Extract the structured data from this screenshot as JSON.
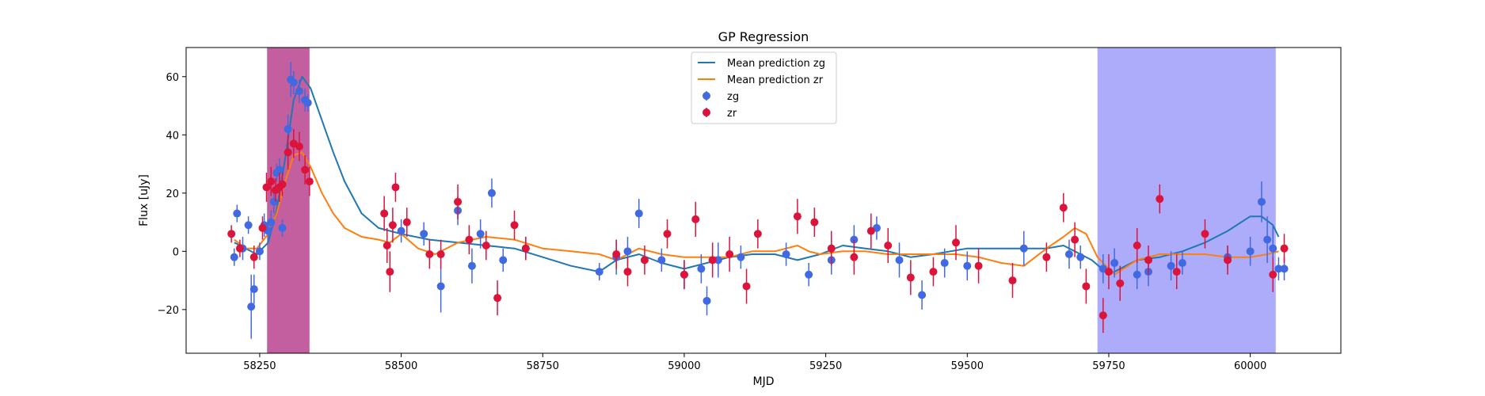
{
  "chart_data": {
    "type": "scatter",
    "title": "GP Regression",
    "xlabel": "MJD",
    "ylabel": "Flux [uJy]",
    "xlim": [
      58120,
      60160
    ],
    "ylim": [
      -35,
      70
    ],
    "x_ticks": [
      58250,
      58500,
      58750,
      59000,
      59250,
      59500,
      59750,
      60000
    ],
    "y_ticks": [
      -20,
      0,
      20,
      40,
      60
    ],
    "y_tick_labels": [
      "−20",
      "0",
      "20",
      "40",
      "60"
    ],
    "legend_position": "upper center",
    "shaded_regions": [
      {
        "x0": 58263,
        "x1": 58338,
        "color": "#c0569a"
      },
      {
        "x0": 59730,
        "x1": 60045,
        "color": "#a8a8fb"
      }
    ],
    "series": [
      {
        "name": "Mean prediction zg",
        "kind": "line",
        "color": "#1f77b4",
        "x": [
          58205,
          58225,
          58245,
          58265,
          58280,
          58295,
          58310,
          58325,
          58340,
          58360,
          58380,
          58400,
          58430,
          58460,
          58500,
          58550,
          58600,
          58650,
          58700,
          58750,
          58800,
          58850,
          58880,
          58920,
          58960,
          59000,
          59040,
          59080,
          59120,
          59160,
          59200,
          59240,
          59280,
          59320,
          59360,
          59400,
          59440,
          59500,
          59560,
          59600,
          59640,
          59670,
          59690,
          59720,
          59750,
          59800,
          59840,
          59880,
          59920,
          59960,
          60000,
          60020,
          60040,
          60050
        ],
        "y": [
          3,
          1,
          -1,
          3,
          14,
          32,
          52,
          60,
          56,
          45,
          34,
          24,
          13,
          8,
          6,
          4,
          3,
          2,
          1,
          -2,
          -5,
          -7,
          -3,
          -1,
          -4,
          -6,
          -4,
          -2,
          -1,
          -1,
          -3,
          -1,
          2,
          1,
          0,
          -2,
          -1,
          1,
          1,
          1,
          1,
          2,
          0,
          -3,
          -8,
          -3,
          -2,
          0,
          3,
          7,
          12,
          12,
          9,
          5
        ]
      },
      {
        "name": "Mean prediction zr",
        "kind": "line",
        "color": "#ff7f0e",
        "x": [
          58205,
          58225,
          58245,
          58265,
          58280,
          58295,
          58310,
          58325,
          58340,
          58360,
          58380,
          58400,
          58430,
          58460,
          58480,
          58500,
          58530,
          58560,
          58600,
          58650,
          58700,
          58750,
          58800,
          58850,
          58880,
          58920,
          58960,
          59000,
          59040,
          59080,
          59120,
          59160,
          59200,
          59220,
          59240,
          59280,
          59320,
          59360,
          59400,
          59440,
          59480,
          59520,
          59560,
          59600,
          59640,
          59670,
          59690,
          59710,
          59730,
          59760,
          59800,
          59840,
          59880,
          59920,
          59960,
          60000,
          60030,
          60050
        ],
        "y": [
          4,
          1,
          1,
          6,
          13,
          24,
          33,
          34,
          29,
          20,
          13,
          8,
          5,
          4,
          3,
          6,
          1,
          -1,
          3,
          5,
          4,
          1,
          0,
          -1,
          -3,
          1,
          -1,
          -2,
          -2,
          -2,
          0,
          0,
          2,
          0,
          -1,
          0,
          0,
          -1,
          -1,
          -1,
          -1,
          -2,
          -4,
          -5,
          1,
          5,
          8,
          6,
          -2,
          -8,
          -3,
          -1,
          -1,
          -1,
          -2,
          -2,
          -1,
          0
        ]
      },
      {
        "name": "zg",
        "kind": "errorbar",
        "color": "#4169e1",
        "x": [
          58205,
          58210,
          58220,
          58230,
          58235,
          58240,
          58250,
          58258,
          58265,
          58270,
          58275,
          58280,
          58285,
          58290,
          58300,
          58305,
          58310,
          58320,
          58330,
          58335,
          58500,
          58540,
          58570,
          58600,
          58625,
          58640,
          58660,
          58680,
          58720,
          58850,
          58880,
          58900,
          58920,
          58960,
          59000,
          59030,
          59040,
          59060,
          59100,
          59180,
          59220,
          59260,
          59300,
          59340,
          59380,
          59420,
          59460,
          59500,
          59600,
          59680,
          59700,
          59740,
          59760,
          59800,
          59820,
          59860,
          59880,
          59960,
          60000,
          60020,
          60030,
          60040,
          60050,
          60060
        ],
        "y": [
          -2,
          13,
          1,
          9,
          -19,
          -13,
          0,
          9,
          7,
          10,
          17,
          27,
          28,
          8,
          42,
          59,
          58,
          55,
          52,
          51,
          7,
          6,
          -12,
          14,
          -5,
          6,
          20,
          -3,
          1,
          -7,
          -2,
          0,
          13,
          -3,
          -8,
          -6,
          -17,
          -3,
          -2,
          -1,
          -8,
          -3,
          4,
          8,
          -3,
          -15,
          -4,
          -5,
          1,
          -1,
          -2,
          -6,
          -4,
          -8,
          -7,
          -5,
          -4,
          -2,
          0,
          17,
          4,
          1,
          -6,
          -6
        ],
        "yerr": [
          3,
          3,
          4,
          3,
          11,
          5,
          3,
          4,
          3,
          4,
          4,
          3,
          4,
          3,
          5,
          6,
          4,
          4,
          4,
          3,
          4,
          4,
          9,
          5,
          6,
          5,
          5,
          4,
          4,
          3,
          6,
          5,
          5,
          4,
          5,
          5,
          5,
          6,
          4,
          4,
          4,
          5,
          5,
          4,
          6,
          5,
          5,
          5,
          6,
          5,
          4,
          5,
          5,
          5,
          5,
          5,
          4,
          4,
          5,
          7,
          8,
          8,
          4,
          4
        ],
        "markersize": 5
      },
      {
        "name": "zr",
        "kind": "errorbar",
        "color": "#dc143c",
        "x": [
          58200,
          58215,
          58240,
          58255,
          58262,
          58270,
          58278,
          58285,
          58290,
          58300,
          58310,
          58320,
          58330,
          58338,
          58470,
          58475,
          58480,
          58485,
          58490,
          58510,
          58550,
          58570,
          58600,
          58620,
          58650,
          58670,
          58700,
          58720,
          58880,
          58900,
          58930,
          58970,
          59000,
          59020,
          59050,
          59080,
          59110,
          59130,
          59200,
          59230,
          59260,
          59300,
          59330,
          59360,
          59400,
          59440,
          59480,
          59520,
          59580,
          59640,
          59670,
          59690,
          59710,
          59740,
          59750,
          59770,
          59800,
          59820,
          59840,
          59870,
          59920,
          59960,
          60040,
          60060
        ],
        "y": [
          6,
          1,
          -2,
          8,
          22,
          24,
          21,
          22,
          23,
          34,
          37,
          36,
          28,
          24,
          13,
          2,
          -7,
          9,
          22,
          10,
          -1,
          -1,
          17,
          4,
          2,
          -16,
          9,
          1,
          -1,
          -7,
          -3,
          6,
          -8,
          11,
          -3,
          -1,
          -12,
          6,
          12,
          10,
          1,
          -2,
          7,
          2,
          -9,
          -7,
          3,
          -5,
          -10,
          -2,
          15,
          4,
          -12,
          -22,
          -7,
          -11,
          2,
          -3,
          18,
          -7,
          6,
          -3,
          -8,
          1
        ],
        "yerr": [
          3,
          3,
          4,
          4,
          5,
          5,
          4,
          5,
          4,
          6,
          5,
          5,
          5,
          5,
          6,
          6,
          7,
          6,
          5,
          5,
          5,
          5,
          6,
          5,
          5,
          6,
          5,
          4,
          5,
          5,
          5,
          5,
          5,
          6,
          6,
          6,
          6,
          5,
          6,
          5,
          6,
          6,
          6,
          6,
          6,
          5,
          6,
          6,
          6,
          5,
          5,
          6,
          6,
          6,
          6,
          6,
          6,
          5,
          5,
          6,
          5,
          5,
          6,
          5
        ],
        "markersize": 5
      }
    ]
  }
}
